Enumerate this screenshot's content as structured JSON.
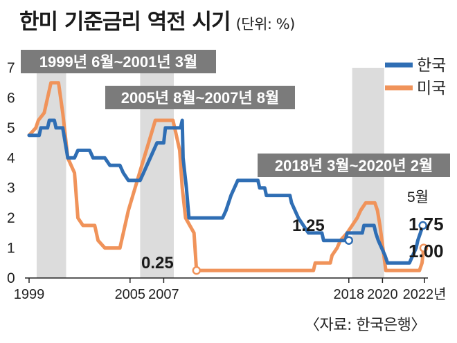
{
  "header": {
    "title": "한미 기준금리 역전 시기",
    "unit": "(단위: %)"
  },
  "source": "〈자료: 한국은행〉",
  "colors": {
    "korea": "#2f6eb4",
    "us": "#f0935a",
    "shade": "#dcdcdc",
    "label_bg": "#7b7b7b"
  },
  "chart_data": {
    "type": "line",
    "title": "한미 기준금리 역전 시기",
    "unit": "%",
    "xlim": [
      1999.0,
      2022.7
    ],
    "ylim": [
      0,
      7
    ],
    "y_ticks": [
      "0",
      "1",
      "2",
      "3",
      "4",
      "5",
      "6",
      "7"
    ],
    "y_tick_values": [
      0,
      1,
      2,
      3,
      4,
      5,
      6,
      7
    ],
    "x_ticks": [
      {
        "value": 1999.0,
        "label": "1999"
      },
      {
        "value": 2005.0,
        "label": "2005"
      },
      {
        "value": 2007.0,
        "label": "2007"
      },
      {
        "value": 2018.0,
        "label": "2018"
      },
      {
        "value": 2020.0,
        "label": "2020"
      },
      {
        "value": 2022.5,
        "label": "2022년"
      }
    ],
    "legend": {
      "position": "top-right",
      "entries": [
        "한국",
        "미국"
      ]
    },
    "inversion_periods": [
      {
        "start": 1999.45,
        "end": 2001.2,
        "label": "1999년 6월~2001년 3월"
      },
      {
        "start": 2005.6,
        "end": 2007.6,
        "label": "2005년 8월~2007년 8월"
      },
      {
        "start": 2018.2,
        "end": 2020.1,
        "label": "2018년 3월~2020년 2월"
      }
    ],
    "series": [
      {
        "name": "한국",
        "points": [
          [
            1999.0,
            4.75
          ],
          [
            1999.6,
            4.75
          ],
          [
            1999.7,
            5.0
          ],
          [
            2000.1,
            5.0
          ],
          [
            2000.2,
            5.25
          ],
          [
            2000.5,
            5.25
          ],
          [
            2000.6,
            5.0
          ],
          [
            2001.0,
            5.0
          ],
          [
            2001.3,
            4.0
          ],
          [
            2001.7,
            4.0
          ],
          [
            2001.9,
            4.25
          ],
          [
            2002.6,
            4.25
          ],
          [
            2002.8,
            4.0
          ],
          [
            2003.5,
            4.0
          ],
          [
            2003.8,
            3.75
          ],
          [
            2004.4,
            3.75
          ],
          [
            2004.6,
            3.5
          ],
          [
            2004.9,
            3.25
          ],
          [
            2005.6,
            3.25
          ],
          [
            2005.8,
            3.5
          ],
          [
            2006.2,
            4.0
          ],
          [
            2006.6,
            4.5
          ],
          [
            2007.0,
            4.5
          ],
          [
            2007.1,
            5.0
          ],
          [
            2008.0,
            5.0
          ],
          [
            2008.1,
            5.25
          ],
          [
            2008.15,
            4.0
          ],
          [
            2008.35,
            3.0
          ],
          [
            2008.5,
            2.0
          ],
          [
            2010.5,
            2.0
          ],
          [
            2010.7,
            2.25
          ],
          [
            2011.0,
            2.75
          ],
          [
            2011.4,
            3.25
          ],
          [
            2012.6,
            3.25
          ],
          [
            2012.7,
            3.0
          ],
          [
            2013.0,
            3.0
          ],
          [
            2013.1,
            2.75
          ],
          [
            2014.5,
            2.75
          ],
          [
            2014.6,
            2.5
          ],
          [
            2015.0,
            2.0
          ],
          [
            2015.3,
            1.75
          ],
          [
            2015.6,
            1.5
          ],
          [
            2016.4,
            1.5
          ],
          [
            2016.5,
            1.25
          ],
          [
            2017.8,
            1.25
          ],
          [
            2017.9,
            1.5
          ],
          [
            2018.8,
            1.5
          ],
          [
            2018.9,
            1.75
          ],
          [
            2019.5,
            1.75
          ],
          [
            2019.6,
            1.5
          ],
          [
            2019.75,
            1.25
          ],
          [
            2020.15,
            0.75
          ],
          [
            2020.3,
            0.5
          ],
          [
            2021.6,
            0.5
          ],
          [
            2021.8,
            0.75
          ],
          [
            2022.0,
            1.0
          ],
          [
            2022.1,
            1.25
          ],
          [
            2022.25,
            1.5
          ],
          [
            2022.4,
            1.75
          ]
        ]
      },
      {
        "name": "미국",
        "points": [
          [
            1999.0,
            4.75
          ],
          [
            1999.4,
            5.0
          ],
          [
            1999.55,
            5.25
          ],
          [
            1999.9,
            5.5
          ],
          [
            2000.1,
            6.0
          ],
          [
            2000.3,
            6.5
          ],
          [
            2000.75,
            6.5
          ],
          [
            2001.0,
            5.5
          ],
          [
            2001.3,
            4.0
          ],
          [
            2001.7,
            3.5
          ],
          [
            2001.9,
            2.0
          ],
          [
            2002.2,
            1.75
          ],
          [
            2002.9,
            1.75
          ],
          [
            2003.1,
            1.25
          ],
          [
            2003.5,
            1.0
          ],
          [
            2004.4,
            1.0
          ],
          [
            2004.6,
            1.5
          ],
          [
            2004.9,
            2.25
          ],
          [
            2005.3,
            3.0
          ],
          [
            2005.7,
            3.75
          ],
          [
            2006.1,
            4.5
          ],
          [
            2006.5,
            5.25
          ],
          [
            2007.55,
            5.25
          ],
          [
            2007.75,
            4.75
          ],
          [
            2007.95,
            4.25
          ],
          [
            2008.1,
            3.0
          ],
          [
            2008.3,
            2.0
          ],
          [
            2008.8,
            1.5
          ],
          [
            2008.95,
            0.25
          ],
          [
            2015.9,
            0.25
          ],
          [
            2016.0,
            0.5
          ],
          [
            2016.9,
            0.5
          ],
          [
            2017.0,
            0.75
          ],
          [
            2017.3,
            1.0
          ],
          [
            2017.5,
            1.25
          ],
          [
            2017.9,
            1.5
          ],
          [
            2018.2,
            1.75
          ],
          [
            2018.5,
            2.0
          ],
          [
            2018.7,
            2.25
          ],
          [
            2019.0,
            2.5
          ],
          [
            2019.55,
            2.5
          ],
          [
            2019.7,
            2.25
          ],
          [
            2019.85,
            1.75
          ],
          [
            2020.2,
            0.25
          ],
          [
            2022.2,
            0.25
          ],
          [
            2022.35,
            0.5
          ],
          [
            2022.45,
            1.0
          ]
        ]
      }
    ],
    "annotations": [
      {
        "text": "0.25",
        "x": 2008.95,
        "y": 0.25
      },
      {
        "text": "1.25",
        "x": 2018.0,
        "y": 1.25
      },
      {
        "text": "5월",
        "x": 2022.4,
        "y": 2.6
      },
      {
        "text": "1.75",
        "x": 2022.4,
        "y": 1.75,
        "series": "한국"
      },
      {
        "text": "1.00",
        "x": 2022.45,
        "y": 1.0,
        "series": "미국"
      }
    ]
  }
}
